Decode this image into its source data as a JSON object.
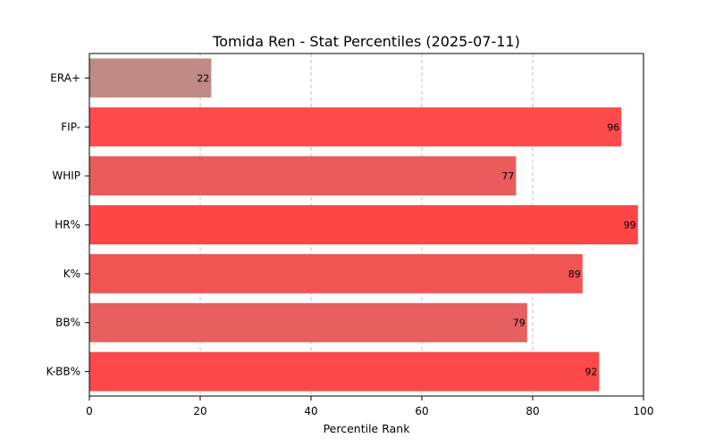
{
  "chart_data": {
    "type": "bar",
    "orientation": "horizontal",
    "title": "Tomida Ren - Stat Percentiles (2025-07-11)",
    "xlabel": "Percentile Rank",
    "ylabel": "",
    "xlim": [
      0,
      100
    ],
    "xticks": [
      0,
      20,
      40,
      60,
      80,
      100
    ],
    "grid": "x-axis, dashed",
    "categories": [
      "ERA+",
      "FIP-",
      "WHIP",
      "HR%",
      "K%",
      "BB%",
      "K-BB%"
    ],
    "values": [
      22,
      96,
      77,
      99,
      89,
      79,
      92
    ],
    "bar_colors": [
      "#c08a87",
      "#fe4a4a",
      "#ea5c5c",
      "#fe4646",
      "#f25454",
      "#e75f5f",
      "#fc4848"
    ],
    "data_labels": [
      "22",
      "96",
      "77",
      "99",
      "89",
      "79",
      "92"
    ]
  }
}
